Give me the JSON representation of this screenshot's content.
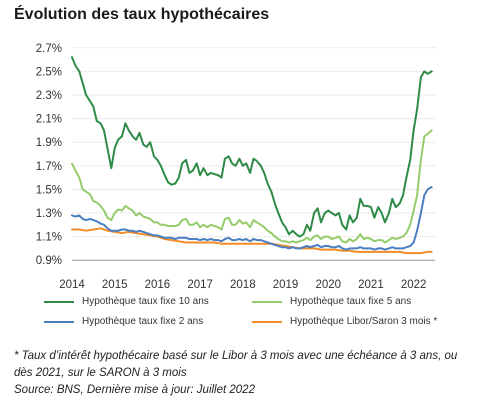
{
  "title": "Évolution des taux hypothécaires",
  "chart_data": {
    "type": "line",
    "ylim": [
      0.8,
      2.8
    ],
    "xlim": [
      2014.0,
      2022.5
    ],
    "yticks": [
      0.9,
      1.1,
      1.3,
      1.5,
      1.7,
      1.9,
      2.1,
      2.3,
      2.5,
      2.7
    ],
    "ytick_labels": [
      "0.9%",
      "1.1%",
      "1.3%",
      "1.5%",
      "1.7%",
      "1.9%",
      "2.1%",
      "2.3%",
      "2.5%",
      "2.7%"
    ],
    "xticks": [
      2014,
      2015,
      2016,
      2017,
      2018,
      2019,
      2020,
      2021,
      2022
    ],
    "xtick_labels": [
      "2014",
      "2015",
      "2016",
      "2017",
      "2018",
      "2019",
      "2020",
      "2021",
      "2022"
    ],
    "grid": "horizontal",
    "legend": "bottom",
    "series": [
      {
        "name": "Hypothèque taux fixe 10 ans",
        "color": "#2e8b47",
        "x": [
          2014.0,
          2014.08,
          2014.17,
          2014.25,
          2014.33,
          2014.42,
          2014.5,
          2014.58,
          2014.67,
          2014.75,
          2014.83,
          2014.92,
          2015.0,
          2015.08,
          2015.17,
          2015.25,
          2015.33,
          2015.42,
          2015.5,
          2015.58,
          2015.67,
          2015.75,
          2015.83,
          2015.92,
          2016.0,
          2016.08,
          2016.17,
          2016.25,
          2016.33,
          2016.42,
          2016.5,
          2016.58,
          2016.67,
          2016.75,
          2016.83,
          2016.92,
          2017.0,
          2017.08,
          2017.17,
          2017.25,
          2017.33,
          2017.42,
          2017.5,
          2017.58,
          2017.67,
          2017.75,
          2017.83,
          2017.92,
          2018.0,
          2018.08,
          2018.17,
          2018.25,
          2018.33,
          2018.42,
          2018.5,
          2018.58,
          2018.67,
          2018.75,
          2018.83,
          2018.92,
          2019.0,
          2019.08,
          2019.17,
          2019.25,
          2019.33,
          2019.42,
          2019.5,
          2019.58,
          2019.67,
          2019.75,
          2019.83,
          2019.92,
          2020.0,
          2020.08,
          2020.17,
          2020.25,
          2020.33,
          2020.42,
          2020.5,
          2020.58,
          2020.67,
          2020.75,
          2020.83,
          2020.92,
          2021.0,
          2021.08,
          2021.17,
          2021.25,
          2021.33,
          2021.42,
          2021.5,
          2021.58,
          2021.67,
          2021.75,
          2021.83,
          2021.92,
          2022.0,
          2022.08,
          2022.17,
          2022.25,
          2022.33,
          2022.42
        ],
        "y": [
          2.62,
          2.55,
          2.5,
          2.4,
          2.3,
          2.25,
          2.2,
          2.08,
          2.06,
          2.0,
          1.85,
          1.68,
          1.85,
          1.92,
          1.95,
          2.06,
          2.0,
          1.95,
          1.92,
          1.98,
          1.88,
          1.86,
          1.9,
          1.78,
          1.75,
          1.7,
          1.62,
          1.56,
          1.54,
          1.55,
          1.6,
          1.72,
          1.75,
          1.64,
          1.66,
          1.72,
          1.62,
          1.68,
          1.62,
          1.64,
          1.63,
          1.62,
          1.6,
          1.76,
          1.78,
          1.72,
          1.7,
          1.76,
          1.7,
          1.72,
          1.64,
          1.76,
          1.74,
          1.7,
          1.64,
          1.55,
          1.48,
          1.38,
          1.3,
          1.22,
          1.18,
          1.12,
          1.15,
          1.12,
          1.1,
          1.12,
          1.2,
          1.15,
          1.3,
          1.34,
          1.22,
          1.3,
          1.32,
          1.3,
          1.28,
          1.3,
          1.2,
          1.16,
          1.28,
          1.22,
          1.26,
          1.42,
          1.36,
          1.36,
          1.35,
          1.26,
          1.35,
          1.3,
          1.22,
          1.3,
          1.42,
          1.35,
          1.38,
          1.45,
          1.6,
          1.75,
          2.0,
          2.18,
          2.45,
          2.5,
          2.48,
          2.5
        ]
      },
      {
        "name": "Hypothèque taux fixe 5 ans",
        "color": "#94cc6b",
        "x": [
          2014.0,
          2014.08,
          2014.17,
          2014.25,
          2014.33,
          2014.42,
          2014.5,
          2014.58,
          2014.67,
          2014.75,
          2014.83,
          2014.92,
          2015.0,
          2015.08,
          2015.17,
          2015.25,
          2015.33,
          2015.42,
          2015.5,
          2015.58,
          2015.67,
          2015.75,
          2015.83,
          2015.92,
          2016.0,
          2016.08,
          2016.17,
          2016.25,
          2016.33,
          2016.42,
          2016.5,
          2016.58,
          2016.67,
          2016.75,
          2016.83,
          2016.92,
          2017.0,
          2017.08,
          2017.17,
          2017.25,
          2017.33,
          2017.42,
          2017.5,
          2017.58,
          2017.67,
          2017.75,
          2017.83,
          2017.92,
          2018.0,
          2018.08,
          2018.17,
          2018.25,
          2018.33,
          2018.42,
          2018.5,
          2018.58,
          2018.67,
          2018.75,
          2018.83,
          2018.92,
          2019.0,
          2019.08,
          2019.17,
          2019.25,
          2019.33,
          2019.42,
          2019.5,
          2019.58,
          2019.67,
          2019.75,
          2019.83,
          2019.92,
          2020.0,
          2020.08,
          2020.17,
          2020.25,
          2020.33,
          2020.42,
          2020.5,
          2020.58,
          2020.67,
          2020.75,
          2020.83,
          2020.92,
          2021.0,
          2021.08,
          2021.17,
          2021.25,
          2021.33,
          2021.42,
          2021.5,
          2021.58,
          2021.67,
          2021.75,
          2021.83,
          2021.92,
          2022.0,
          2022.08,
          2022.17,
          2022.25,
          2022.33,
          2022.42
        ],
        "y": [
          1.72,
          1.66,
          1.6,
          1.5,
          1.48,
          1.46,
          1.4,
          1.39,
          1.36,
          1.32,
          1.26,
          1.24,
          1.3,
          1.33,
          1.32,
          1.36,
          1.34,
          1.32,
          1.28,
          1.3,
          1.27,
          1.26,
          1.25,
          1.22,
          1.22,
          1.2,
          1.2,
          1.19,
          1.19,
          1.19,
          1.2,
          1.24,
          1.25,
          1.2,
          1.2,
          1.22,
          1.18,
          1.2,
          1.18,
          1.2,
          1.19,
          1.18,
          1.16,
          1.25,
          1.26,
          1.2,
          1.2,
          1.24,
          1.21,
          1.22,
          1.18,
          1.24,
          1.22,
          1.2,
          1.18,
          1.15,
          1.13,
          1.1,
          1.08,
          1.06,
          1.06,
          1.05,
          1.06,
          1.05,
          1.06,
          1.07,
          1.09,
          1.07,
          1.1,
          1.11,
          1.08,
          1.1,
          1.1,
          1.08,
          1.09,
          1.1,
          1.06,
          1.05,
          1.08,
          1.06,
          1.08,
          1.12,
          1.08,
          1.09,
          1.08,
          1.06,
          1.07,
          1.07,
          1.05,
          1.07,
          1.09,
          1.08,
          1.09,
          1.1,
          1.13,
          1.2,
          1.32,
          1.45,
          1.75,
          1.95,
          1.97,
          2.0
        ]
      },
      {
        "name": "Hypothèque taux fixe 2 ans",
        "color": "#4a7fc1",
        "x": [
          2014.0,
          2014.08,
          2014.17,
          2014.25,
          2014.33,
          2014.42,
          2014.5,
          2014.58,
          2014.67,
          2014.75,
          2014.83,
          2014.92,
          2015.0,
          2015.08,
          2015.17,
          2015.25,
          2015.33,
          2015.42,
          2015.5,
          2015.58,
          2015.67,
          2015.75,
          2015.83,
          2015.92,
          2016.0,
          2016.08,
          2016.17,
          2016.25,
          2016.33,
          2016.42,
          2016.5,
          2016.58,
          2016.67,
          2016.75,
          2016.83,
          2016.92,
          2017.0,
          2017.08,
          2017.17,
          2017.25,
          2017.33,
          2017.42,
          2017.5,
          2017.58,
          2017.67,
          2017.75,
          2017.83,
          2017.92,
          2018.0,
          2018.08,
          2018.17,
          2018.25,
          2018.33,
          2018.42,
          2018.5,
          2018.58,
          2018.67,
          2018.75,
          2018.83,
          2018.92,
          2019.0,
          2019.08,
          2019.17,
          2019.25,
          2019.33,
          2019.42,
          2019.5,
          2019.58,
          2019.67,
          2019.75,
          2019.83,
          2019.92,
          2020.0,
          2020.08,
          2020.17,
          2020.25,
          2020.33,
          2020.42,
          2020.5,
          2020.58,
          2020.67,
          2020.75,
          2020.83,
          2020.92,
          2021.0,
          2021.08,
          2021.17,
          2021.25,
          2021.33,
          2021.42,
          2021.5,
          2021.58,
          2021.67,
          2021.75,
          2021.83,
          2021.92,
          2022.0,
          2022.08,
          2022.17,
          2022.25,
          2022.33,
          2022.42
        ],
        "y": [
          1.28,
          1.27,
          1.28,
          1.25,
          1.24,
          1.25,
          1.24,
          1.23,
          1.21,
          1.2,
          1.17,
          1.15,
          1.15,
          1.15,
          1.16,
          1.16,
          1.15,
          1.15,
          1.14,
          1.15,
          1.14,
          1.13,
          1.12,
          1.11,
          1.11,
          1.1,
          1.09,
          1.09,
          1.09,
          1.08,
          1.09,
          1.09,
          1.09,
          1.08,
          1.08,
          1.08,
          1.07,
          1.08,
          1.07,
          1.08,
          1.07,
          1.07,
          1.06,
          1.08,
          1.09,
          1.07,
          1.07,
          1.08,
          1.07,
          1.08,
          1.06,
          1.08,
          1.07,
          1.07,
          1.06,
          1.05,
          1.04,
          1.03,
          1.02,
          1.01,
          1.01,
          1.0,
          1.01,
          1.0,
          1.0,
          1.01,
          1.02,
          1.01,
          1.02,
          1.03,
          1.01,
          1.02,
          1.02,
          1.01,
          1.01,
          1.02,
          1.0,
          0.99,
          1.0,
          1.0,
          1.0,
          1.01,
          1.0,
          1.0,
          1.0,
          0.99,
          1.0,
          1.0,
          0.99,
          1.0,
          1.01,
          1.0,
          1.0,
          1.0,
          1.01,
          1.02,
          1.05,
          1.15,
          1.3,
          1.45,
          1.5,
          1.52
        ]
      },
      {
        "name": "Hypothèque Libor/Saron 3 mois *",
        "color": "#f28c28",
        "x": [
          2014.0,
          2014.17,
          2014.33,
          2014.5,
          2014.67,
          2014.83,
          2015.0,
          2015.17,
          2015.33,
          2015.5,
          2015.67,
          2015.83,
          2016.0,
          2016.17,
          2016.33,
          2016.5,
          2016.67,
          2016.83,
          2017.0,
          2017.17,
          2017.33,
          2017.5,
          2017.67,
          2017.83,
          2018.0,
          2018.17,
          2018.33,
          2018.5,
          2018.67,
          2018.83,
          2019.0,
          2019.17,
          2019.33,
          2019.5,
          2019.67,
          2019.83,
          2020.0,
          2020.17,
          2020.33,
          2020.5,
          2020.67,
          2020.83,
          2021.0,
          2021.17,
          2021.33,
          2021.5,
          2021.67,
          2021.83,
          2022.0,
          2022.17,
          2022.33,
          2022.42
        ],
        "y": [
          1.16,
          1.16,
          1.15,
          1.16,
          1.17,
          1.15,
          1.14,
          1.13,
          1.14,
          1.13,
          1.12,
          1.11,
          1.1,
          1.08,
          1.07,
          1.06,
          1.05,
          1.05,
          1.05,
          1.05,
          1.05,
          1.04,
          1.04,
          1.04,
          1.04,
          1.04,
          1.04,
          1.04,
          1.04,
          1.03,
          1.02,
          1.01,
          1.0,
          1.0,
          1.0,
          0.99,
          0.99,
          0.99,
          0.98,
          0.98,
          0.97,
          0.97,
          0.97,
          0.97,
          0.97,
          0.97,
          0.97,
          0.96,
          0.96,
          0.96,
          0.97,
          0.97
        ]
      }
    ]
  },
  "footnote": {
    "line1": "* Taux d’intérêt hypothécaire basé sur le Libor à 3 mois avec une échéance à 3 ans, ou dès 2021, sur le SARON à 3 mois",
    "line2": "Source: BNS, Dernière mise à jour: Juillet 2022"
  }
}
